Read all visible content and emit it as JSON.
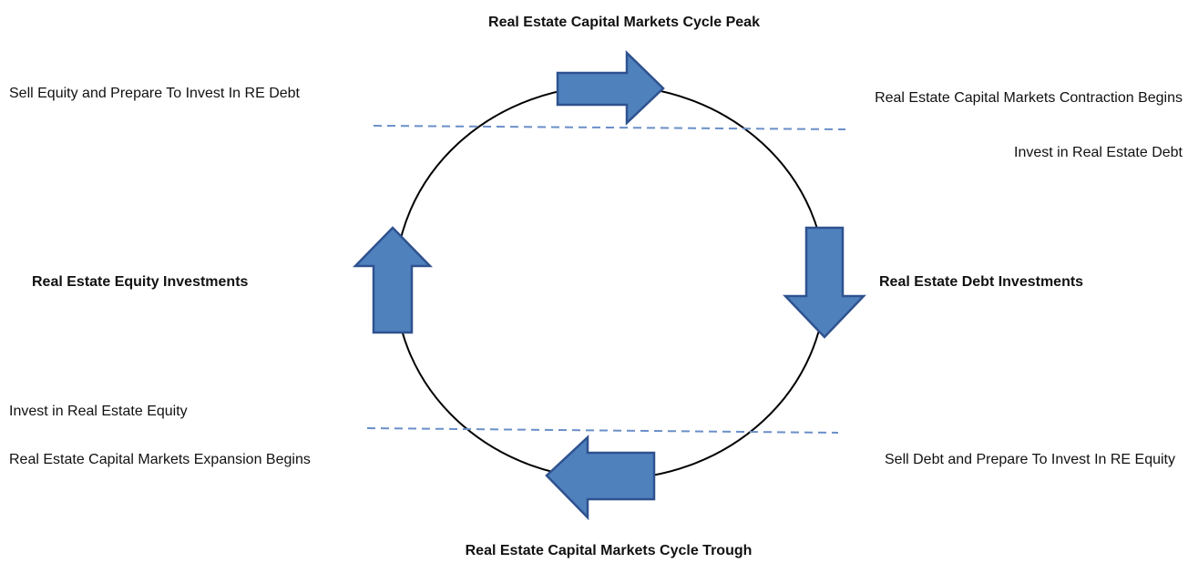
{
  "diagram": {
    "peak": "Real Estate Capital Markets Cycle Peak",
    "trough": "Real Estate Capital Markets Cycle Trough",
    "equity_investments": "Real Estate Equity Investments",
    "debt_investments": "Real Estate Debt Investments",
    "notes": [
      "Sell Equity and Prepare To Invest In RE Debt",
      "Real Estate Capital Markets Contraction Begins",
      "Invest in Real Estate Debt",
      "Invest in Real Estate Equity",
      "Real Estate Capital Markets Expansion Begins",
      "Sell Debt and Prepare To Invest In RE Equity"
    ]
  }
}
